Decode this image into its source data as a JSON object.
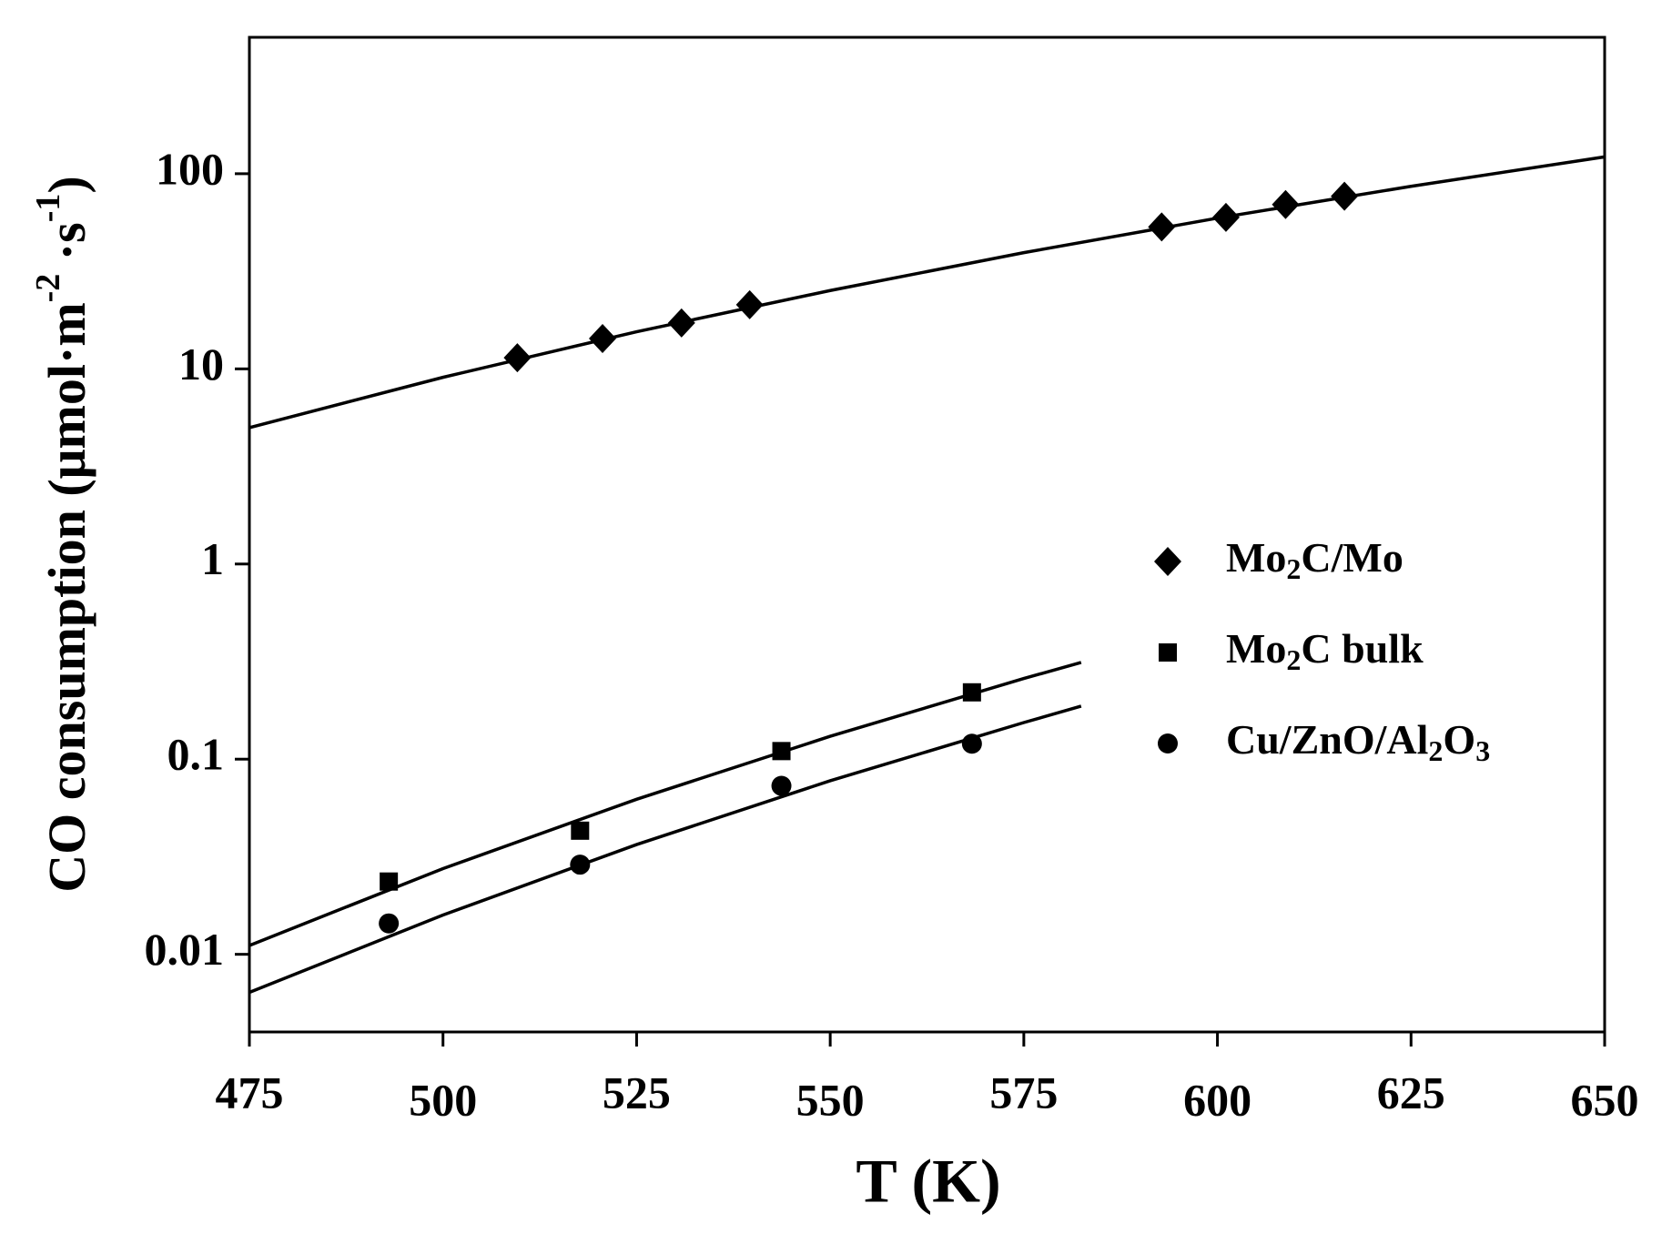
{
  "chart_data": {
    "type": "scatter",
    "x_label": "T (K)",
    "y_label": {
      "text": "CO consumption (μmol·m",
      "sup1": "-2",
      "mid": " ·s",
      "sup2": "-1",
      "end": ")"
    },
    "xlim": [
      475,
      650
    ],
    "xticks": [
      475,
      500,
      525,
      550,
      575,
      600,
      625,
      650
    ],
    "ylim": [
      0.004,
      500
    ],
    "yticks": [
      0.01,
      0.1,
      1,
      10,
      100
    ],
    "log_y": true,
    "legend": "right",
    "series": [
      {
        "name": "Mo2C/Mo",
        "marker": "diamond",
        "color": "#000000",
        "x": [
          509.6,
          520.6,
          530.8,
          539.6,
          592.8,
          601.1,
          608.8,
          616.4
        ],
        "values": [
          11.4,
          14.3,
          17.2,
          21.3,
          53.4,
          59.7,
          69.5,
          76.7
        ]
      },
      {
        "name": "Mo2C bulk",
        "marker": "square",
        "color": "#000000",
        "x": [
          493.0,
          517.7,
          543.7,
          568.3
        ],
        "values": [
          0.0236,
          0.043,
          0.11,
          0.22
        ]
      },
      {
        "name": "Cu/ZnO/Al2O3",
        "marker": "circle",
        "color": "#000000",
        "x": [
          493.0,
          517.7,
          543.7,
          568.3
        ],
        "values": [
          0.0144,
          0.0288,
          0.073,
          0.12
        ]
      }
    ],
    "fits": [
      {
        "x": [
          475,
          500,
          525,
          550,
          575,
          600,
          625,
          650
        ],
        "values": [
          5.0,
          9.05,
          15.5,
          25.2,
          39.4,
          59.2,
          86.2,
          122
        ]
      },
      {
        "x": [
          475,
          500,
          525,
          550,
          575,
          582.4
        ],
        "values": [
          0.0111,
          0.0275,
          0.0623,
          0.131,
          0.259,
          0.313
        ]
      },
      {
        "x": [
          475,
          500,
          525,
          550,
          575,
          582.4
        ],
        "values": [
          0.00638,
          0.0159,
          0.0365,
          0.0775,
          0.154,
          0.187
        ]
      }
    ]
  }
}
